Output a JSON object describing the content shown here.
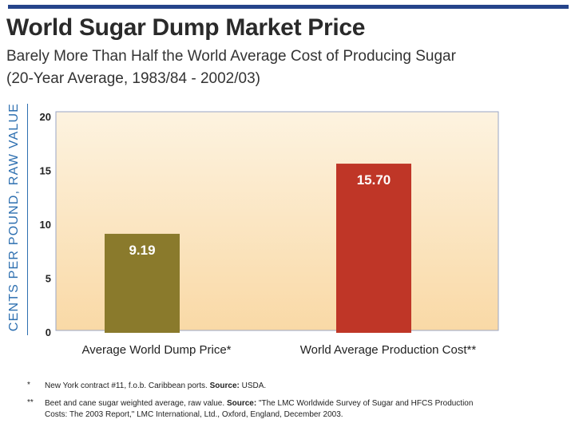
{
  "title": "World Sugar Dump Market Price",
  "subtitle1": "Barely More Than Half the World Average Cost of Producing Sugar",
  "subtitle2": "(20-Year Average, 1983/84 - 2002/03)",
  "chart_data": {
    "type": "bar",
    "categories": [
      "Average World Dump Price*",
      "World Average Production Cost**"
    ],
    "values": [
      9.19,
      15.7
    ],
    "value_labels": [
      "9.19",
      "15.70"
    ],
    "colors": [
      "#8a7a2c",
      "#bf3627"
    ],
    "ylabel": "CENTS PER POUND, RAW VALUE",
    "ylim": [
      0,
      20
    ],
    "yticks": [
      0,
      5,
      10,
      15,
      20
    ],
    "grid": false
  },
  "footnotes": [
    {
      "mark": "*",
      "text": "New York contract #11, f.o.b. Caribbean ports.",
      "source_label": "Source:",
      "source": "USDA."
    },
    {
      "mark": "**",
      "text": "Beet and cane sugar weighted average, raw value.",
      "source_label": "Source:",
      "source": "\"The LMC Worldwide Survey of Sugar and HFCS Production Costs: The 2003 Report,\" LMC International, Ltd., Oxford, England, December 2003."
    }
  ]
}
